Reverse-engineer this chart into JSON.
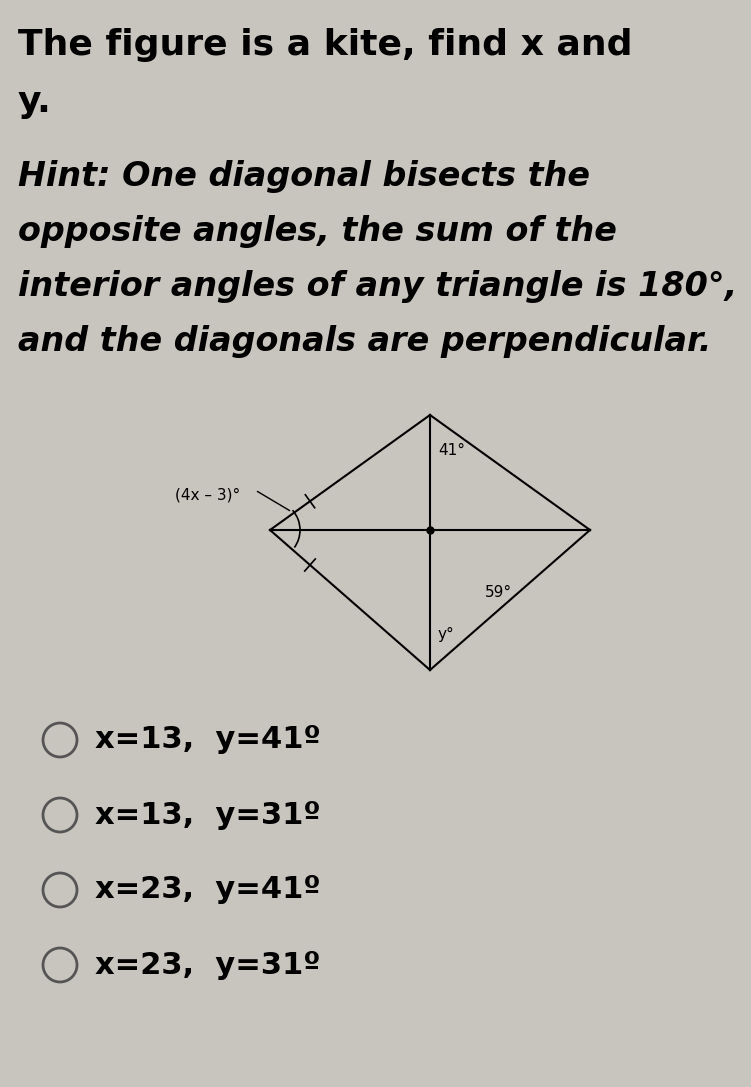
{
  "title_line1": "The figure is a kite, find x and",
  "title_line2": "y.",
  "hint_line1": "Hint: One diagonal bisects the",
  "hint_line2": "opposite angles, the sum of the",
  "hint_line3": "interior angles of any triangle is 180°,",
  "hint_line4": "and the diagonals are perpendicular.",
  "choices": [
    "x=13,  y=41º",
    "x=13,  y=31º",
    "x=23,  y=41º",
    "x=23,  y=31º"
  ],
  "angle_41_label": "41°",
  "angle_59_label": "59°",
  "angle_4x3_label": "(4x – 3)°",
  "angle_y_label": "y°",
  "bg_color": "#c8c4be",
  "text_color": "#000000",
  "title_fontsize": 26,
  "hint_fontsize": 24,
  "choice_fontsize": 22,
  "diagram_fontsize": 11
}
